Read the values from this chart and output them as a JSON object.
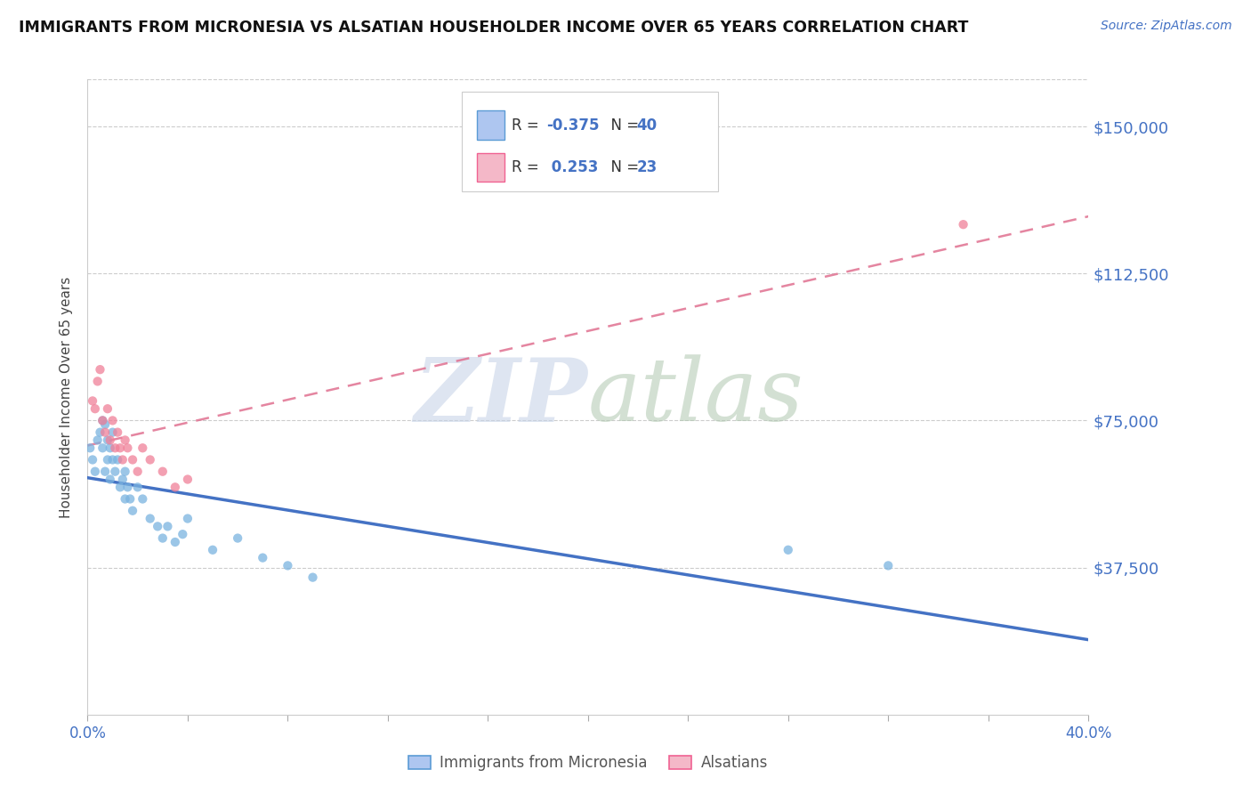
{
  "title": "IMMIGRANTS FROM MICRONESIA VS ALSATIAN HOUSEHOLDER INCOME OVER 65 YEARS CORRELATION CHART",
  "source": "Source: ZipAtlas.com",
  "ylabel": "Householder Income Over 65 years",
  "y_ticks": [
    0,
    37500,
    75000,
    112500,
    150000
  ],
  "y_tick_labels": [
    "",
    "$37,500",
    "$75,000",
    "$112,500",
    "$150,000"
  ],
  "xlim": [
    0.0,
    0.4
  ],
  "ylim": [
    0,
    162000
  ],
  "series1_color": "#7ab3e0",
  "series2_color": "#f08098",
  "trendline1_color": "#4472c4",
  "trendline2_color": "#e07090",
  "blue_points_x": [
    0.001,
    0.002,
    0.003,
    0.004,
    0.005,
    0.006,
    0.006,
    0.007,
    0.007,
    0.008,
    0.008,
    0.009,
    0.009,
    0.01,
    0.01,
    0.011,
    0.012,
    0.013,
    0.014,
    0.015,
    0.015,
    0.016,
    0.017,
    0.018,
    0.02,
    0.022,
    0.025,
    0.028,
    0.03,
    0.032,
    0.035,
    0.038,
    0.04,
    0.05,
    0.06,
    0.07,
    0.08,
    0.09,
    0.28,
    0.32
  ],
  "blue_points_y": [
    68000,
    65000,
    62000,
    70000,
    72000,
    75000,
    68000,
    74000,
    62000,
    70000,
    65000,
    68000,
    60000,
    65000,
    72000,
    62000,
    65000,
    58000,
    60000,
    55000,
    62000,
    58000,
    55000,
    52000,
    58000,
    55000,
    50000,
    48000,
    45000,
    48000,
    44000,
    46000,
    50000,
    42000,
    45000,
    40000,
    38000,
    35000,
    42000,
    38000
  ],
  "pink_points_x": [
    0.002,
    0.003,
    0.004,
    0.005,
    0.006,
    0.007,
    0.008,
    0.009,
    0.01,
    0.011,
    0.012,
    0.013,
    0.014,
    0.015,
    0.016,
    0.018,
    0.02,
    0.022,
    0.025,
    0.03,
    0.035,
    0.04,
    0.35
  ],
  "pink_points_y": [
    80000,
    78000,
    85000,
    88000,
    75000,
    72000,
    78000,
    70000,
    75000,
    68000,
    72000,
    68000,
    65000,
    70000,
    68000,
    65000,
    62000,
    68000,
    65000,
    62000,
    58000,
    60000,
    125000
  ],
  "background_color": "#ffffff",
  "grid_color": "#cccccc",
  "watermark_zip_color": "#d0d8e8",
  "watermark_atlas_color": "#b8cdb8",
  "legend_blue_fill": "#aec6f0",
  "legend_pink_fill": "#f4b8c8",
  "legend_blue_edge": "#5b9bd5",
  "legend_pink_edge": "#f06292",
  "r1": "-0.375",
  "n1": "40",
  "r2": "0.253",
  "n2": "23",
  "bottom_legend_label1": "Immigrants from Micronesia",
  "bottom_legend_label2": "Alsatians"
}
